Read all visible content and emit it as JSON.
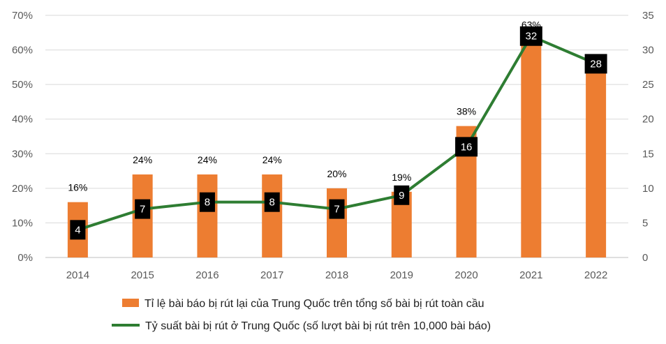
{
  "chart_data": {
    "type": "bar+line",
    "categories": [
      "2014",
      "2015",
      "2016",
      "2017",
      "2018",
      "2019",
      "2020",
      "2021",
      "2022"
    ],
    "series": [
      {
        "name": "Tỉ lệ bài báo bị rút lại của Trung Quốc trên tổng số bài bị rút toàn cầu",
        "type": "bar",
        "axis": "left",
        "values": [
          16,
          24,
          24,
          24,
          20,
          19,
          38,
          63,
          57
        ],
        "labels": [
          "16%",
          "24%",
          "24%",
          "24%",
          "20%",
          "19%",
          "38%",
          "63%",
          ""
        ],
        "color": "#ED7D31"
      },
      {
        "name": "Tỷ suất bài bị rút ở Trung Quốc (số lượt bài bị rút trên 10,000 bài báo)",
        "type": "line",
        "axis": "right",
        "values": [
          4,
          7,
          8,
          8,
          7,
          9,
          16,
          32,
          28
        ],
        "labels": [
          "4",
          "7",
          "8",
          "8",
          "7",
          "9",
          "16",
          "32",
          "28"
        ],
        "color": "#2E7D32"
      }
    ],
    "y_left": {
      "ylim": [
        0,
        70
      ],
      "ticks": [
        0,
        10,
        20,
        30,
        40,
        50,
        60,
        70
      ],
      "tick_labels": [
        "0%",
        "10%",
        "20%",
        "30%",
        "40%",
        "50%",
        "60%",
        "70%"
      ]
    },
    "y_right": {
      "ylim": [
        0,
        35
      ],
      "ticks": [
        0,
        5,
        10,
        15,
        20,
        25,
        30,
        35
      ],
      "tick_labels": [
        "0",
        "5",
        "10",
        "15",
        "20",
        "25",
        "30",
        "35"
      ]
    },
    "grid": true,
    "legend_position": "bottom"
  }
}
